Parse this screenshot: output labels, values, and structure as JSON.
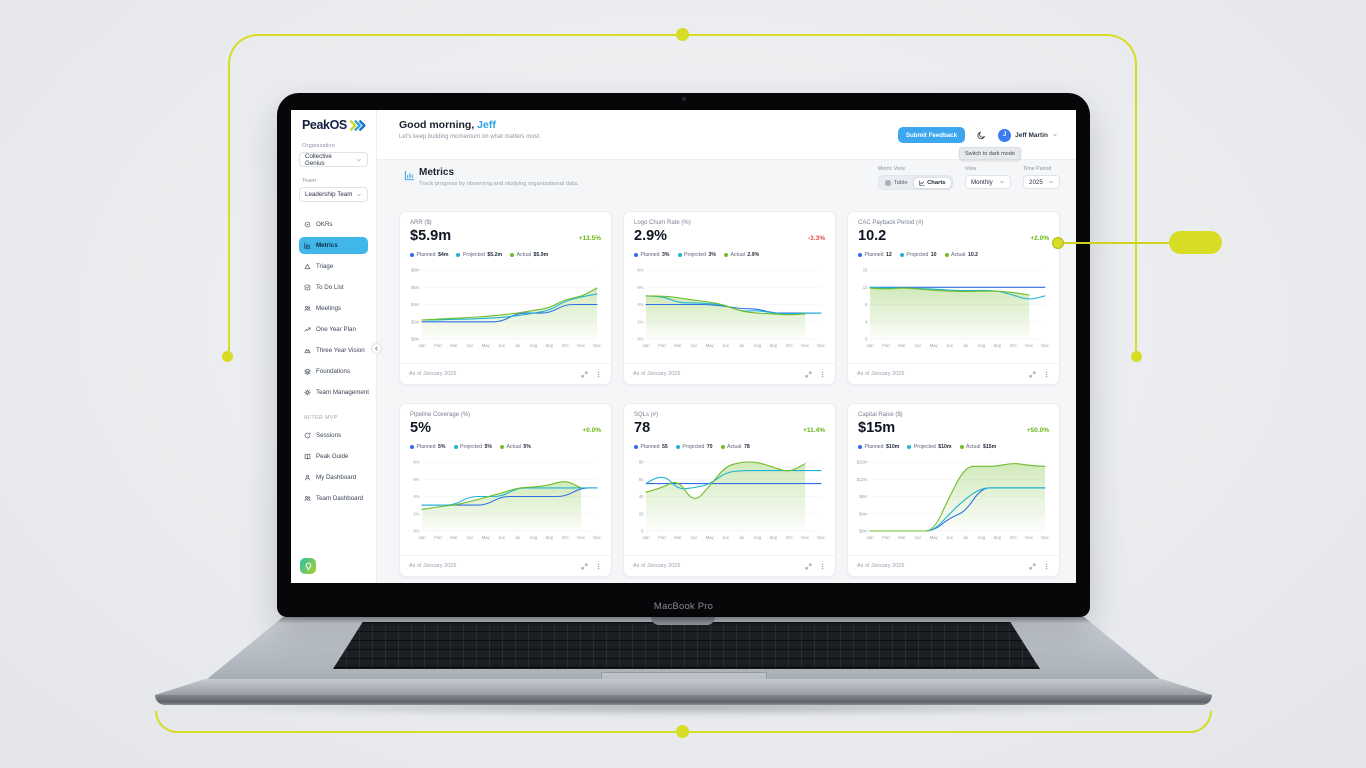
{
  "device": {
    "label": "MacBook Pro"
  },
  "sidebar": {
    "logo_text": "PeakOS",
    "org_label": "Organization",
    "org_value": "Collective Genius",
    "team_label": "Team",
    "team_value": "Leadership Team",
    "nav": [
      {
        "label": "OKRs",
        "icon": "target"
      },
      {
        "label": "Metrics",
        "icon": "chart-bars",
        "active": true
      },
      {
        "label": "Triage",
        "icon": "triangle"
      },
      {
        "label": "To Do List",
        "icon": "checklist"
      },
      {
        "label": "Meetings",
        "icon": "people"
      },
      {
        "label": "One Year Plan",
        "icon": "trend"
      },
      {
        "label": "Three Year Vision",
        "icon": "mountain"
      },
      {
        "label": "Foundations",
        "icon": "layers"
      },
      {
        "label": "Team Management",
        "icon": "gear"
      }
    ],
    "after_mvp_label": "AFTER MVP",
    "after_mvp": [
      {
        "label": "Sessions",
        "icon": "refresh"
      },
      {
        "label": "Peak Guide",
        "icon": "book"
      },
      {
        "label": "My Dashboard",
        "icon": "person"
      },
      {
        "label": "Team Dashboard",
        "icon": "people"
      }
    ]
  },
  "header": {
    "greeting_prefix": "Good morning, ",
    "greeting_name": "Jeff",
    "subtitle": "Let's keep building momentum on what matters most.",
    "feedback_button": "Submit Feedback",
    "user_initial": "J",
    "user_name": "Jeff Martin",
    "dark_mode_tooltip": "Switch to dark mode"
  },
  "section": {
    "title": "Metrics",
    "subtitle": "Track progress by observing and studying organizational data.",
    "metric_view_label": "Metric View",
    "table_label": "Table",
    "charts_label": "Charts",
    "view_label": "View",
    "view_value": "Monthly",
    "period_label": "Time Period",
    "period_value": "2025"
  },
  "cards_footer": {
    "as_of": "As of January 2026"
  },
  "months": [
    "Jan",
    "Feb",
    "Mar",
    "Apr",
    "May",
    "Jun",
    "Jul",
    "Aug",
    "Sep",
    "Oct",
    "Nov",
    "Dec"
  ],
  "colors": {
    "planned": "#2f6fe4",
    "projected": "#1fb4d2",
    "actual": "#70bc2a",
    "delta_up": "#67b414",
    "delta_down": "#e54f4a",
    "accent_yellow": "#d7dd25"
  },
  "chart_data": [
    {
      "type": "line",
      "title": "ARR ($)",
      "value": "$5.9m",
      "delta": "+13.5%",
      "trend": "up",
      "ylim": [
        0,
        8
      ],
      "yticks": [
        {
          "v": 8,
          "label": "$8m"
        },
        {
          "v": 6,
          "label": "$6m"
        },
        {
          "v": 4,
          "label": "$4m"
        },
        {
          "v": 2,
          "label": "$2m"
        },
        {
          "v": 0,
          "label": "$0m"
        }
      ],
      "series": [
        {
          "name": "Planned",
          "legend_value": "$4m",
          "values": [
            2,
            2,
            2,
            2,
            2,
            2,
            3,
            3,
            3,
            4,
            4,
            4
          ]
        },
        {
          "name": "Projected",
          "legend_value": "$5.2m",
          "values": [
            2.2,
            2.2,
            2.3,
            2.3,
            2.4,
            2.5,
            2.7,
            3,
            3.3,
            4.4,
            4.9,
            5.2
          ]
        },
        {
          "name": "Actual",
          "legend_value": "$5.9m",
          "values": [
            2.2,
            2.3,
            2.4,
            2.5,
            2.6,
            2.8,
            3,
            3.3,
            3.6,
            4.6,
            4.9,
            5.9
          ],
          "area": true
        }
      ]
    },
    {
      "type": "line",
      "title": "Logo Churn Rate (%)",
      "value": "2.9%",
      "delta": "-3.3%",
      "trend": "down",
      "ylim": [
        0,
        8
      ],
      "yticks": [
        {
          "v": 8,
          "label": "8%"
        },
        {
          "v": 6,
          "label": "6%"
        },
        {
          "v": 4,
          "label": "4%"
        },
        {
          "v": 2,
          "label": "2%"
        },
        {
          "v": 0,
          "label": "0%"
        }
      ],
      "series": [
        {
          "name": "Planned",
          "legend_value": "3%",
          "values": [
            4,
            4,
            4,
            4,
            4,
            3.8,
            3.5,
            3.5,
            3,
            3,
            3,
            3
          ]
        },
        {
          "name": "Projected",
          "legend_value": "3%",
          "values": [
            5,
            5,
            4.2,
            4.2,
            4.1,
            3.9,
            3.2,
            3.3,
            3,
            2.9,
            3,
            3
          ]
        },
        {
          "name": "Actual",
          "legend_value": "2.9%",
          "values": [
            5,
            5,
            4.8,
            4.5,
            4.3,
            3.9,
            3.2,
            3,
            2.9,
            2.8,
            2.9,
            null
          ],
          "area": true
        }
      ]
    },
    {
      "type": "line",
      "title": "CAC Payback Period (#)",
      "value": "10.2",
      "delta": "+2.0%",
      "trend": "up",
      "ylim": [
        0,
        16
      ],
      "yticks": [
        {
          "v": 16,
          "label": "16"
        },
        {
          "v": 12,
          "label": "12"
        },
        {
          "v": 8,
          "label": "8"
        },
        {
          "v": 4,
          "label": "4"
        },
        {
          "v": 0,
          "label": "0"
        }
      ],
      "series": [
        {
          "name": "Planned",
          "legend_value": "12",
          "values": [
            12,
            12,
            12,
            12,
            12,
            12,
            12,
            12,
            12,
            12,
            12,
            12
          ]
        },
        {
          "name": "Projected",
          "legend_value": "10",
          "values": [
            12,
            11.8,
            11.9,
            11.7,
            11.6,
            11.3,
            11.2,
            11.3,
            11.2,
            10.2,
            9,
            10
          ]
        },
        {
          "name": "Actual",
          "legend_value": "10.2",
          "values": [
            11.8,
            11.5,
            11.9,
            11.6,
            11.3,
            11.1,
            11,
            11.1,
            11.1,
            10.8,
            10.2,
            null
          ],
          "area": true
        }
      ]
    },
    {
      "type": "line",
      "title": "Pipeline Coverage (%)",
      "value": "5%",
      "delta": "+0.0%",
      "trend": "up",
      "ylim": [
        0,
        8
      ],
      "yticks": [
        {
          "v": 8,
          "label": "8%"
        },
        {
          "v": 6,
          "label": "6%"
        },
        {
          "v": 4,
          "label": "4%"
        },
        {
          "v": 2,
          "label": "2%"
        },
        {
          "v": 0,
          "label": "0%"
        }
      ],
      "series": [
        {
          "name": "Planned",
          "legend_value": "5%",
          "values": [
            3,
            3,
            3,
            3,
            3,
            4,
            4,
            4,
            4,
            4,
            5,
            5
          ]
        },
        {
          "name": "Projected",
          "legend_value": "5%",
          "values": [
            3,
            3,
            3,
            4,
            4,
            4,
            5,
            5,
            5,
            5,
            5,
            5
          ]
        },
        {
          "name": "Actual",
          "legend_value": "5%",
          "values": [
            2.5,
            2.8,
            3,
            3.4,
            3.9,
            4.4,
            5,
            5.1,
            5.3,
            5.9,
            5,
            null
          ],
          "area": true
        }
      ]
    },
    {
      "type": "line",
      "title": "SQLs (#)",
      "value": "78",
      "delta": "+11.4%",
      "trend": "up",
      "ylim": [
        0,
        80
      ],
      "yticks": [
        {
          "v": 80,
          "label": "80"
        },
        {
          "v": 60,
          "label": "60"
        },
        {
          "v": 40,
          "label": "40"
        },
        {
          "v": 20,
          "label": "20"
        },
        {
          "v": 0,
          "label": "0"
        }
      ],
      "series": [
        {
          "name": "Planned",
          "legend_value": "55",
          "values": [
            55,
            55,
            55,
            55,
            55,
            55,
            55,
            55,
            55,
            55,
            55,
            55
          ]
        },
        {
          "name": "Projected",
          "legend_value": "70",
          "values": [
            55,
            68,
            48,
            50,
            54,
            68,
            70,
            70,
            70,
            70,
            70,
            70
          ]
        },
        {
          "name": "Actual",
          "legend_value": "78",
          "values": [
            45,
            50,
            60,
            32,
            52,
            75,
            80,
            80,
            74,
            68,
            78,
            null
          ],
          "area": true
        }
      ]
    },
    {
      "type": "line",
      "title": "Capital Raise ($)",
      "value": "$15m",
      "delta": "+50.0%",
      "trend": "up",
      "ylim": [
        0,
        16
      ],
      "yticks": [
        {
          "v": 16,
          "label": "$16m"
        },
        {
          "v": 12,
          "label": "$12m"
        },
        {
          "v": 8,
          "label": "$8m"
        },
        {
          "v": 4,
          "label": "$4m"
        },
        {
          "v": 0,
          "label": "$0m"
        }
      ],
      "series": [
        {
          "name": "Planned",
          "legend_value": "$10m",
          "values": [
            0,
            0,
            0,
            0,
            0,
            3,
            4.5,
            10,
            10,
            10,
            10,
            10
          ]
        },
        {
          "name": "Projected",
          "legend_value": "$10m",
          "values": [
            0,
            0,
            0,
            0,
            0,
            4,
            7.5,
            10,
            10,
            10,
            10,
            10
          ]
        },
        {
          "name": "Actual",
          "legend_value": "$15m",
          "values": [
            0,
            0,
            0,
            0,
            0,
            8,
            15,
            15,
            15,
            15.8,
            15.2,
            15
          ],
          "area": true
        }
      ]
    }
  ]
}
